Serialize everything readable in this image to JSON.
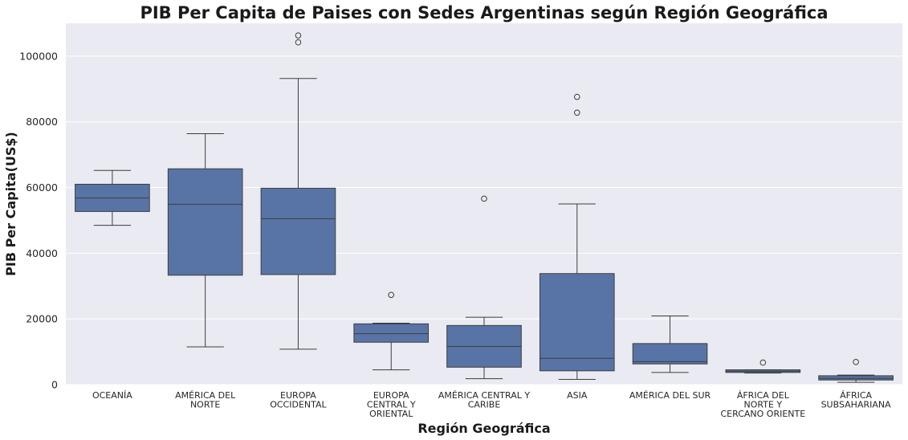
{
  "chart_data": {
    "type": "box",
    "title": "PIB Per Capita de Paises con Sedes Argentinas según Región Geográfica",
    "xlabel": "Región Geográfica",
    "ylabel": "PIB Per Capita(US$)",
    "ylim": [
      0,
      110000
    ],
    "yticks": [
      0,
      20000,
      40000,
      60000,
      80000,
      100000
    ],
    "grid": true,
    "colors": {
      "box": "#5874a6",
      "line": "#3d3d3d",
      "background": "#eaeaf2",
      "grid": "#ffffff"
    },
    "categories": [
      {
        "label": [
          "OCEANÍA"
        ],
        "whisker_low": 48500,
        "q1": 52700,
        "median": 56800,
        "q3": 61000,
        "whisker_high": 65200,
        "outliers": []
      },
      {
        "label": [
          "AMÉRICA  DEL",
          "NORTE"
        ],
        "whisker_low": 11500,
        "q1": 33300,
        "median": 54900,
        "q3": 65700,
        "whisker_high": 76400,
        "outliers": []
      },
      {
        "label": [
          "EUROPA",
          "OCCIDENTAL"
        ],
        "whisker_low": 10800,
        "q1": 33500,
        "median": 50500,
        "q3": 59800,
        "whisker_high": 93200,
        "outliers": [
          104200,
          106300
        ]
      },
      {
        "label": [
          "EUROPA",
          "CENTRAL Y",
          "ORIENTAL"
        ],
        "whisker_low": 4500,
        "q1": 12900,
        "median": 15500,
        "q3": 18500,
        "whisker_high": 18700,
        "outliers": [
          27300
        ]
      },
      {
        "label": [
          "AMÉRICA  CENTRAL Y",
          "CARIBE"
        ],
        "whisker_low": 1800,
        "q1": 5300,
        "median": 11600,
        "q3": 18000,
        "whisker_high": 20500,
        "outliers": [
          56600
        ]
      },
      {
        "label": [
          "ASIA"
        ],
        "whisker_low": 1600,
        "q1": 4200,
        "median": 8000,
        "q3": 33800,
        "whisker_high": 55000,
        "outliers": [
          82800,
          87600
        ]
      },
      {
        "label": [
          "AMÉRICA  DEL  SUR"
        ],
        "whisker_low": 3700,
        "q1": 6300,
        "median": 7000,
        "q3": 12500,
        "whisker_high": 20900,
        "outliers": []
      },
      {
        "label": [
          "ÁFRICA  DEL",
          "NORTE  Y",
          "CERCANO  ORIENTE"
        ],
        "whisker_low": 3500,
        "q1": 3700,
        "median": 4100,
        "q3": 4500,
        "whisker_high": 4500,
        "outliers": [
          6700
        ]
      },
      {
        "label": [
          "ÁFRICA",
          "SUBSAHARIANA"
        ],
        "whisker_low": 700,
        "q1": 1400,
        "median": 1900,
        "q3": 2700,
        "whisker_high": 2900,
        "outliers": [
          6900
        ]
      }
    ]
  }
}
